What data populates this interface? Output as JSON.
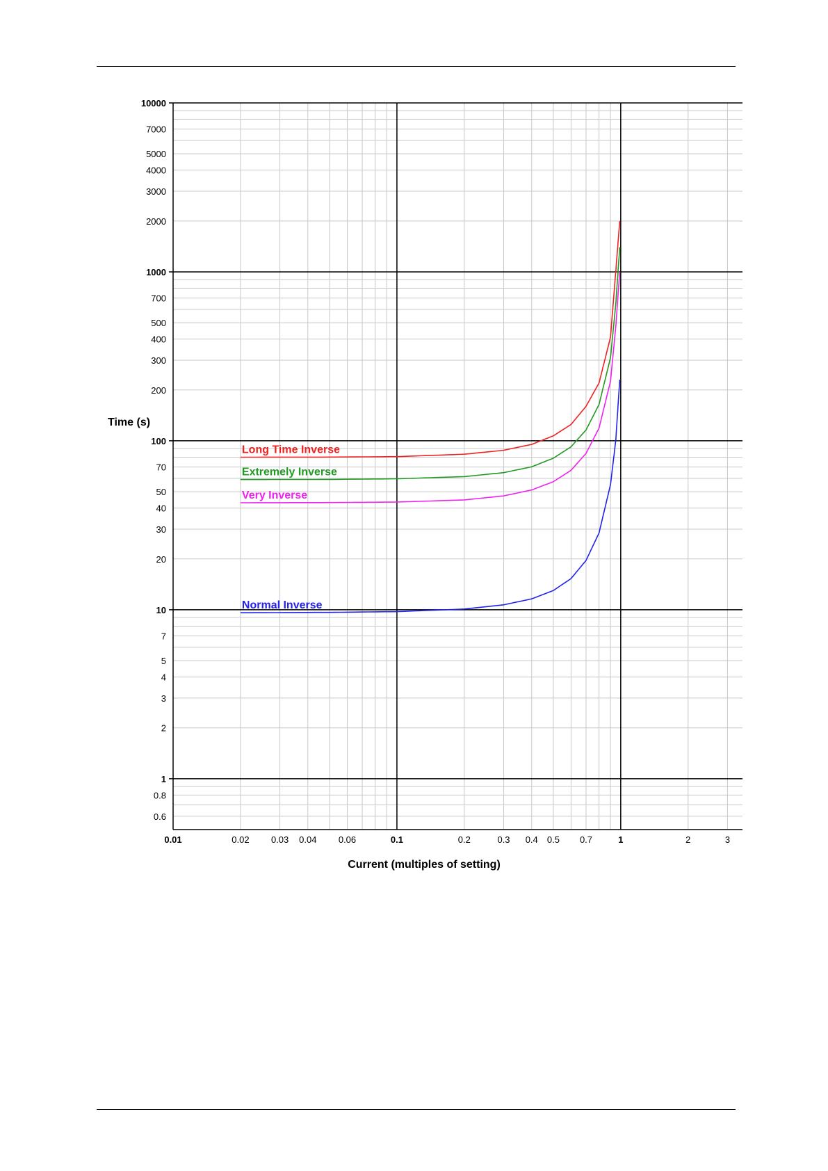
{
  "chart_data": {
    "type": "line",
    "title": "",
    "xlabel": "Current (multiples of setting)",
    "ylabel": "Time (s)",
    "x_scale": "log",
    "y_scale": "log",
    "xlim": [
      0.01,
      3.5
    ],
    "ylim": [
      0.5,
      10000
    ],
    "grid": true,
    "x_ticks": [
      "0.01",
      "0.02",
      "0.03",
      "0.04",
      "0.06",
      "0.1",
      "0.2",
      "0.3",
      "0.4",
      "0.5",
      "0.7",
      "1",
      "2",
      "3"
    ],
    "x_tick_values": [
      0.01,
      0.02,
      0.03,
      0.04,
      0.06,
      0.1,
      0.2,
      0.3,
      0.4,
      0.5,
      0.7,
      1,
      2,
      3
    ],
    "y_ticks": [
      "10000",
      "7000",
      "5000",
      "4000",
      "3000",
      "2000",
      "1000",
      "700",
      "500",
      "400",
      "300",
      "200",
      "100",
      "70",
      "50",
      "40",
      "30",
      "20",
      "10",
      "7",
      "5",
      "4",
      "3",
      "2",
      "1",
      "0.8",
      "0.6"
    ],
    "y_tick_values": [
      10000,
      7000,
      5000,
      4000,
      3000,
      2000,
      1000,
      700,
      500,
      400,
      300,
      200,
      100,
      70,
      50,
      40,
      30,
      20,
      10,
      7,
      5,
      4,
      3,
      2,
      1,
      0.8,
      0.6
    ],
    "series": [
      {
        "name": "Long Time Inverse",
        "color": "#ee2222",
        "x": [
          0.02,
          0.05,
          0.1,
          0.2,
          0.3,
          0.4,
          0.5,
          0.6,
          0.7,
          0.8,
          0.9,
          0.95,
          0.99
        ],
        "y": [
          80,
          80.1,
          80.6,
          83.3,
          87.9,
          95.2,
          107,
          125,
          160,
          220,
          410,
          1000,
          2000
        ]
      },
      {
        "name": "Extremely Inverse",
        "color": "#229922",
        "x": [
          0.02,
          0.05,
          0.1,
          0.2,
          0.3,
          0.4,
          0.5,
          0.6,
          0.7,
          0.8,
          0.9,
          0.95,
          0.99
        ],
        "y": [
          59,
          59.1,
          59.6,
          61.4,
          64.8,
          70.2,
          78.9,
          92.2,
          116,
          164,
          310,
          640,
          1400
        ]
      },
      {
        "name": "Very Inverse",
        "color": "#ee22ee",
        "x": [
          0.02,
          0.05,
          0.1,
          0.2,
          0.3,
          0.4,
          0.5,
          0.6,
          0.7,
          0.8,
          0.9,
          0.95,
          0.99
        ],
        "y": [
          43,
          43.1,
          43.4,
          44.7,
          47.2,
          51.2,
          57.3,
          66.9,
          84.3,
          119,
          225,
          470,
          1000
        ]
      },
      {
        "name": "Normal Inverse",
        "color": "#2222ee",
        "x": [
          0.02,
          0.05,
          0.1,
          0.2,
          0.3,
          0.4,
          0.5,
          0.6,
          0.7,
          0.8,
          0.9,
          0.95,
          0.99
        ],
        "y": [
          9.6,
          9.65,
          9.75,
          10.1,
          10.7,
          11.6,
          13,
          15.3,
          19.6,
          28.5,
          55,
          100,
          230
        ]
      }
    ]
  }
}
